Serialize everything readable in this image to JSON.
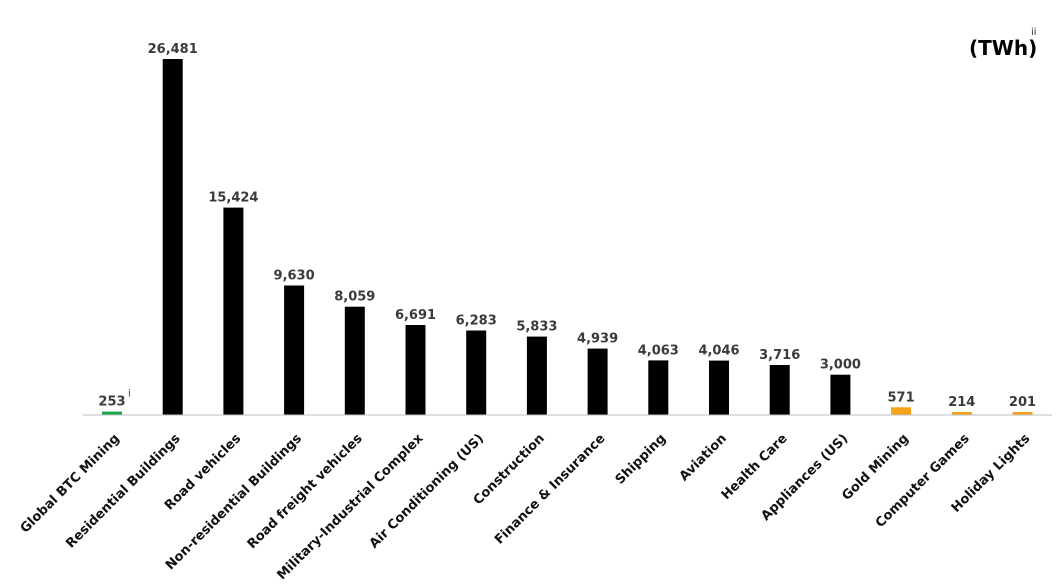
{
  "chart_data": {
    "type": "bar",
    "unit_label": "(TWh)",
    "unit_footnote": "ii",
    "categories": [
      "Global BTC Mining",
      "Residential Buildings",
      "Road vehicles",
      "Non-residential Buildings",
      "Road freight vehicles",
      "Military-Industrial Complex",
      "Air Conditioning (US)",
      "Construction",
      "Finance & Insurance",
      "Shipping",
      "Aviation",
      "Health Care",
      "Appliances (US)",
      "Gold Mining",
      "Computer Games",
      "Holiday Lights"
    ],
    "values": [
      253,
      26481,
      15424,
      9630,
      8059,
      6691,
      6283,
      5833,
      4939,
      4063,
      4046,
      3716,
      3000,
      571,
      214,
      201
    ],
    "value_labels": [
      "253",
      "26,481",
      "15,424",
      "9,630",
      "8,059",
      "6,691",
      "6,283",
      "5,833",
      "4,939",
      "4,063",
      "4,046",
      "3,716",
      "3,000",
      "571",
      "214",
      "201"
    ],
    "footnotes": [
      "i",
      "",
      "",
      "",
      "",
      "",
      "",
      "",
      "",
      "",
      "",
      "",
      "",
      "",
      "",
      ""
    ],
    "colors": [
      "#1aa64b",
      "#000000",
      "#000000",
      "#000000",
      "#000000",
      "#000000",
      "#000000",
      "#000000",
      "#000000",
      "#000000",
      "#000000",
      "#000000",
      "#000000",
      "#f5a31a",
      "#f5a31a",
      "#f5a31a"
    ],
    "ylim": [
      0,
      26481
    ],
    "grid": false,
    "axis_color": "#bfbfbf"
  }
}
